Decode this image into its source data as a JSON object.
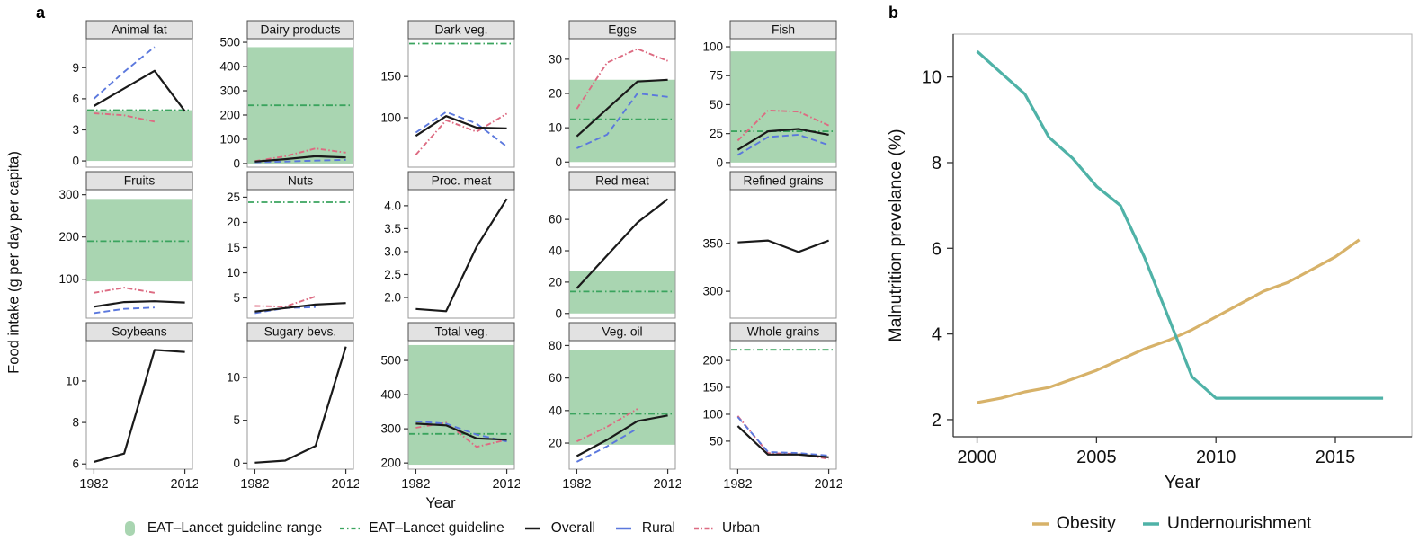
{
  "chart_data": [
    {
      "id": "a",
      "panel_label": "a",
      "type": "line",
      "xlabel": "Year",
      "ylabel": "Food intake (g per day per capita)",
      "x_years": [
        1982,
        1992,
        2002,
        2012
      ],
      "xlim": [
        1979.5,
        2014.5
      ],
      "x_tick_labels": [
        "1982",
        "2012"
      ],
      "guideline_color": "#3aa45e",
      "guideline_range_color": "#a9d5b1",
      "series_styles": {
        "overall": {
          "label": "Overall",
          "color": "#1a1a1a",
          "dash": "solid"
        },
        "rural": {
          "label": "Rural",
          "color": "#5b78dd",
          "dash": "dashed"
        },
        "urban": {
          "label": "Urban",
          "color": "#dd6b82",
          "dash": "dashdot"
        }
      },
      "legend": [
        {
          "label": "EAT–Lancet guideline range",
          "marker": "area"
        },
        {
          "label": "EAT–Lancet guideline",
          "marker": "dashdot-green"
        },
        {
          "label": "Overall",
          "marker": "solid-black"
        },
        {
          "label": "Rural",
          "marker": "dashed-blue"
        },
        {
          "label": "Urban",
          "marker": "dashdot-pink"
        }
      ],
      "subplots": [
        {
          "title": "Animal fat",
          "yticks": [
            "0",
            "3",
            "6",
            "9"
          ],
          "ylim": [
            -0.6,
            11.8
          ],
          "guideline": 4.9,
          "guideline_range": [
            0,
            4.9
          ],
          "overall": [
            5.3,
            7.0,
            8.7,
            4.8
          ],
          "rural": [
            6.0,
            8.6,
            11.0,
            null
          ],
          "urban": [
            4.6,
            4.4,
            3.8,
            null
          ]
        },
        {
          "title": "Dairy products",
          "yticks": [
            "0",
            "100",
            "200",
            "300",
            "400",
            "500"
          ],
          "ylim": [
            -15,
            515
          ],
          "guideline": 240,
          "guideline_range": [
            0,
            480
          ],
          "overall": [
            8,
            18,
            30,
            25
          ],
          "rural": [
            5,
            8,
            12,
            15
          ],
          "urban": [
            10,
            30,
            62,
            45
          ]
        },
        {
          "title": "Dark veg.",
          "yticks": [
            "100",
            "150"
          ],
          "ylim": [
            40,
            196
          ],
          "guideline": 190,
          "guideline_range": null,
          "overall": [
            78,
            102,
            88,
            87
          ],
          "rural": [
            82,
            107,
            93,
            65
          ],
          "urban": [
            55,
            97,
            83,
            105
          ]
        },
        {
          "title": "Eggs",
          "yticks": [
            "0",
            "10",
            "20",
            "30"
          ],
          "ylim": [
            -1.5,
            36
          ],
          "guideline": 12.5,
          "guideline_range": [
            0,
            24
          ],
          "overall": [
            7.5,
            15.5,
            23.5,
            24
          ],
          "rural": [
            4,
            8,
            20,
            19
          ],
          "urban": [
            15.5,
            29,
            33,
            29.5
          ]
        },
        {
          "title": "Fish",
          "yticks": [
            "0",
            "25",
            "50",
            "75",
            "100"
          ],
          "ylim": [
            -4,
            107
          ],
          "guideline": 27,
          "guideline_range": [
            0,
            96
          ],
          "overall": [
            11,
            27,
            29,
            24
          ],
          "rural": [
            6.5,
            22,
            24,
            15
          ],
          "urban": [
            19,
            45,
            44,
            32
          ]
        },
        {
          "title": "Fruits",
          "yticks": [
            "100",
            "200",
            "300"
          ],
          "ylim": [
            8,
            312
          ],
          "guideline": 190,
          "guideline_range": [
            95,
            290
          ],
          "overall": [
            35,
            46,
            48,
            45
          ],
          "rural": [
            20,
            30,
            33,
            null
          ],
          "urban": [
            68,
            80,
            68,
            null
          ]
        },
        {
          "title": "Nuts",
          "yticks": [
            "5",
            "10",
            "15",
            "20",
            "25"
          ],
          "ylim": [
            1,
            26.5
          ],
          "guideline": 24,
          "guideline_range": null,
          "overall": [
            2.3,
            3.0,
            3.7,
            4.0
          ],
          "rural": [
            2.0,
            3.0,
            3.2,
            null
          ],
          "urban": [
            3.4,
            3.3,
            5.3,
            null
          ]
        },
        {
          "title": "Proc. meat",
          "yticks": [
            "2.0",
            "2.5",
            "3.0",
            "3.5",
            "4.0"
          ],
          "ylim": [
            1.55,
            4.35
          ],
          "guideline": null,
          "guideline_range": null,
          "overall": [
            1.75,
            1.7,
            3.1,
            4.15
          ]
        },
        {
          "title": "Red meat",
          "yticks": [
            "0",
            "20",
            "40",
            "60"
          ],
          "ylim": [
            -3,
            79
          ],
          "guideline": 14,
          "guideline_range": [
            0,
            27
          ],
          "overall": [
            16,
            37,
            58,
            73
          ]
        },
        {
          "title": "Refined grains",
          "yticks": [
            "300",
            "350"
          ],
          "ylim": [
            272,
            406
          ],
          "guideline": null,
          "guideline_range": null,
          "overall": [
            351,
            353,
            341,
            353
          ]
        },
        {
          "title": "Soybeans",
          "yticks": [
            "6",
            "8",
            "10"
          ],
          "ylim": [
            5.75,
            11.95
          ],
          "guideline": null,
          "guideline_range": null,
          "overall": [
            6.1,
            6.5,
            11.5,
            11.4
          ]
        },
        {
          "title": "Sugary bevs.",
          "yticks": [
            "0",
            "5",
            "10"
          ],
          "ylim": [
            -0.7,
            14.3
          ],
          "guideline": null,
          "guideline_range": null,
          "overall": [
            0.05,
            0.3,
            2.0,
            13.6
          ]
        },
        {
          "title": "Total veg.",
          "yticks": [
            "200",
            "300",
            "400",
            "500"
          ],
          "ylim": [
            182,
            558
          ],
          "guideline": 285,
          "guideline_range": [
            195,
            545
          ],
          "overall": [
            315,
            310,
            272,
            268
          ],
          "rural": [
            322,
            315,
            283,
            263
          ],
          "urban": [
            303,
            318,
            247,
            268
          ]
        },
        {
          "title": "Veg. oil",
          "yticks": [
            "20",
            "40",
            "60",
            "80"
          ],
          "ylim": [
            4,
            83
          ],
          "guideline": 38,
          "guideline_range": [
            19,
            77
          ],
          "overall": [
            12,
            22,
            33.5,
            37
          ],
          "rural": [
            8.5,
            18,
            29,
            null
          ],
          "urban": [
            21,
            30,
            41,
            null
          ]
        },
        {
          "title": "Whole grains",
          "yticks": [
            "50",
            "100",
            "150",
            "200"
          ],
          "ylim": [
            -2,
            237
          ],
          "guideline": 220,
          "guideline_range": null,
          "overall": [
            78,
            25,
            25,
            20
          ],
          "rural": [
            95,
            30,
            28,
            23
          ],
          "urban": [
            97,
            28,
            26,
            17
          ]
        }
      ]
    },
    {
      "id": "b",
      "panel_label": "b",
      "type": "line",
      "xlabel": "Year",
      "ylabel": "Malnutrition prevelance (%)",
      "xlim": [
        1999,
        2018.2
      ],
      "ylim": [
        1.6,
        11.0
      ],
      "xticks": [
        2000,
        2005,
        2010,
        2015
      ],
      "yticks": [
        2,
        4,
        6,
        8,
        10
      ],
      "series": [
        {
          "name": "Obesity",
          "color": "#d7b269",
          "x": [
            2000,
            2001,
            2002,
            2003,
            2004,
            2005,
            2006,
            2007,
            2008,
            2009,
            2010,
            2011,
            2012,
            2013,
            2014,
            2015,
            2016
          ],
          "y": [
            2.4,
            2.5,
            2.65,
            2.75,
            2.95,
            3.15,
            3.4,
            3.65,
            3.85,
            4.1,
            4.4,
            4.7,
            5.0,
            5.2,
            5.5,
            5.8,
            6.2
          ]
        },
        {
          "name": "Undernourishment",
          "color": "#4fb2a7",
          "x": [
            2000,
            2001,
            2002,
            2003,
            2004,
            2005,
            2006,
            2007,
            2008,
            2009,
            2010,
            2011,
            2012,
            2013,
            2014,
            2015,
            2016,
            2017
          ],
          "y": [
            10.6,
            10.1,
            9.6,
            8.6,
            8.1,
            7.45,
            7.0,
            5.8,
            4.4,
            3.0,
            2.5,
            2.5,
            2.5,
            2.5,
            2.5,
            2.5,
            2.5,
            2.5
          ]
        }
      ]
    }
  ]
}
